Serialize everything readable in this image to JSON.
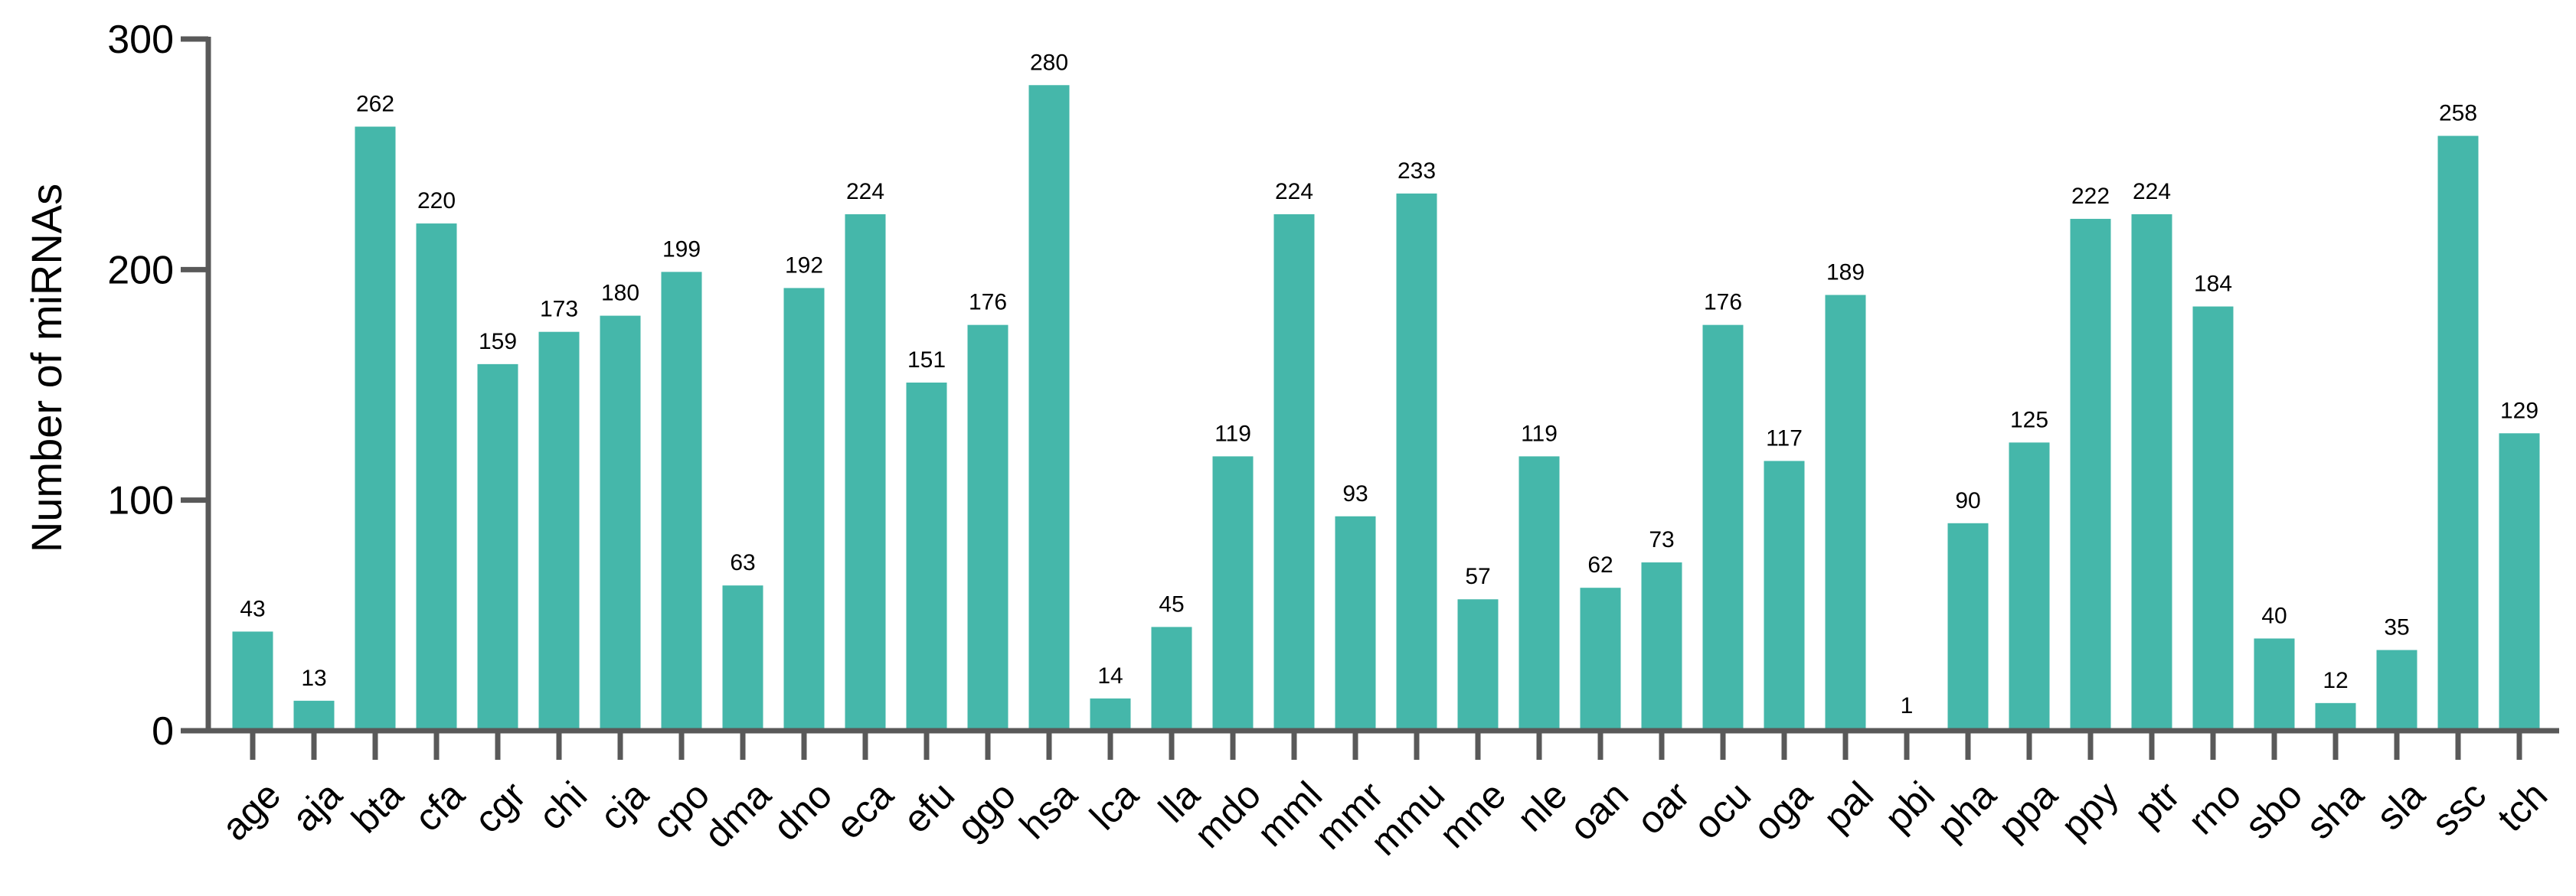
{
  "chart_data": {
    "type": "bar",
    "title": "",
    "xlabel": "",
    "ylabel": "Number of miRNAs",
    "ylim": [
      0,
      300
    ],
    "yticks": [
      0,
      100,
      200,
      300
    ],
    "grid": false,
    "bar_color": "#45B7AA",
    "axis_color": "#595959",
    "categories": [
      "age",
      "aja",
      "bta",
      "cfa",
      "cgr",
      "chi",
      "cja",
      "cpo",
      "dma",
      "dno",
      "eca",
      "efu",
      "ggo",
      "hsa",
      "lca",
      "lla",
      "mdo",
      "mml",
      "mmr",
      "mmu",
      "mne",
      "nle",
      "oan",
      "oar",
      "ocu",
      "oga",
      "pal",
      "pbi",
      "pha",
      "ppa",
      "ppy",
      "ptr",
      "rno",
      "sbo",
      "sha",
      "sla",
      "ssc",
      "tch"
    ],
    "values": [
      43,
      13,
      262,
      220,
      159,
      173,
      180,
      199,
      63,
      192,
      224,
      151,
      176,
      280,
      14,
      45,
      119,
      224,
      93,
      233,
      57,
      119,
      62,
      73,
      176,
      117,
      189,
      1,
      90,
      125,
      222,
      224,
      184,
      40,
      12,
      35,
      258,
      129
    ]
  }
}
